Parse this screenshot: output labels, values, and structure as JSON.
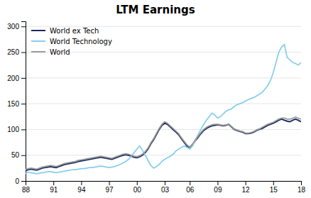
{
  "chart_data": {
    "type": "line",
    "title": "LTM Earnings",
    "categories": [
      "88",
      null,
      null,
      null,
      null,
      null,
      null,
      null,
      null,
      null,
      "91",
      null,
      null,
      null,
      null,
      null,
      null,
      null,
      null,
      null,
      "94",
      null,
      null,
      null,
      null,
      null,
      null,
      null,
      null,
      null,
      "97",
      null,
      null,
      null,
      null,
      null,
      null,
      null,
      null,
      null,
      "00",
      null,
      null,
      null,
      null,
      null,
      null,
      null,
      null,
      null,
      "03",
      null,
      null,
      null,
      null,
      null,
      null,
      null,
      null,
      "06",
      null,
      null,
      null,
      null,
      null,
      null,
      null,
      null,
      null,
      "09",
      null,
      null,
      null,
      null,
      null,
      null,
      null,
      null,
      null,
      "12",
      null,
      null,
      null,
      null,
      null,
      null,
      null,
      null,
      null,
      "15",
      null,
      null,
      null,
      null,
      null,
      null,
      null,
      null,
      null,
      "18"
    ],
    "series": [
      {
        "name": "World ex Tech",
        "color": "#1a2a5e",
        "values": [
          20,
          22,
          23,
          22,
          21,
          23,
          25,
          26,
          27,
          28,
          27,
          26,
          28,
          30,
          32,
          33,
          34,
          35,
          36,
          38,
          39,
          40,
          41,
          42,
          43,
          44,
          45,
          46,
          45,
          44,
          43,
          42,
          44,
          46,
          48,
          50,
          51,
          50,
          48,
          46,
          45,
          47,
          50,
          55,
          62,
          72,
          80,
          90,
          100,
          108,
          112,
          110,
          105,
          100,
          95,
          90,
          82,
          75,
          68,
          65,
          70,
          78,
          85,
          92,
          98,
          102,
          105,
          107,
          108,
          109,
          108,
          107,
          108,
          110,
          105,
          100,
          98,
          96,
          95,
          92,
          92,
          93,
          95,
          98,
          100,
          102,
          105,
          108,
          110,
          112,
          115,
          118,
          120,
          118,
          116,
          115,
          118,
          120,
          118,
          115
        ]
      },
      {
        "name": "World Technology",
        "color": "#87ceeb",
        "values": [
          15,
          17,
          16,
          15,
          14,
          15,
          16,
          17,
          18,
          18,
          17,
          16,
          17,
          18,
          19,
          20,
          21,
          22,
          22,
          23,
          24,
          24,
          25,
          26,
          26,
          27,
          28,
          29,
          28,
          27,
          26,
          27,
          28,
          30,
          32,
          35,
          38,
          42,
          48,
          55,
          62,
          68,
          60,
          50,
          40,
          30,
          25,
          28,
          32,
          38,
          42,
          45,
          48,
          52,
          58,
          62,
          65,
          68,
          65,
          62,
          68,
          78,
          90,
          100,
          110,
          118,
          125,
          132,
          128,
          122,
          125,
          130,
          135,
          138,
          140,
          145,
          148,
          150,
          152,
          155,
          158,
          160,
          162,
          165,
          168,
          172,
          178,
          185,
          195,
          210,
          230,
          250,
          260,
          265,
          240,
          235,
          230,
          228,
          225,
          230
        ]
      },
      {
        "name": "World",
        "color": "#999999",
        "values": [
          22,
          24,
          25,
          24,
          23,
          25,
          27,
          28,
          29,
          30,
          29,
          28,
          30,
          32,
          34,
          35,
          36,
          37,
          38,
          40,
          41,
          42,
          43,
          44,
          45,
          46,
          47,
          48,
          47,
          46,
          45,
          44,
          46,
          48,
          50,
          52,
          53,
          52,
          50,
          48,
          47,
          49,
          52,
          57,
          64,
          74,
          82,
          92,
          102,
          110,
          115,
          112,
          107,
          102,
          97,
          92,
          84,
          77,
          70,
          66,
          72,
          80,
          87,
          94,
          100,
          104,
          107,
          109,
          110,
          110,
          109,
          108,
          109,
          110,
          106,
          101,
          99,
          97,
          96,
          93,
          93,
          94,
          96,
          99,
          101,
          104,
          107,
          110,
          112,
          114,
          117,
          120,
          122,
          122,
          120,
          120,
          122,
          124,
          122,
          120
        ]
      }
    ],
    "ylim": [
      0,
      310
    ],
    "yticks": [
      0,
      50,
      100,
      150,
      200,
      250,
      300
    ],
    "grid": true,
    "legend": "upper-left"
  }
}
